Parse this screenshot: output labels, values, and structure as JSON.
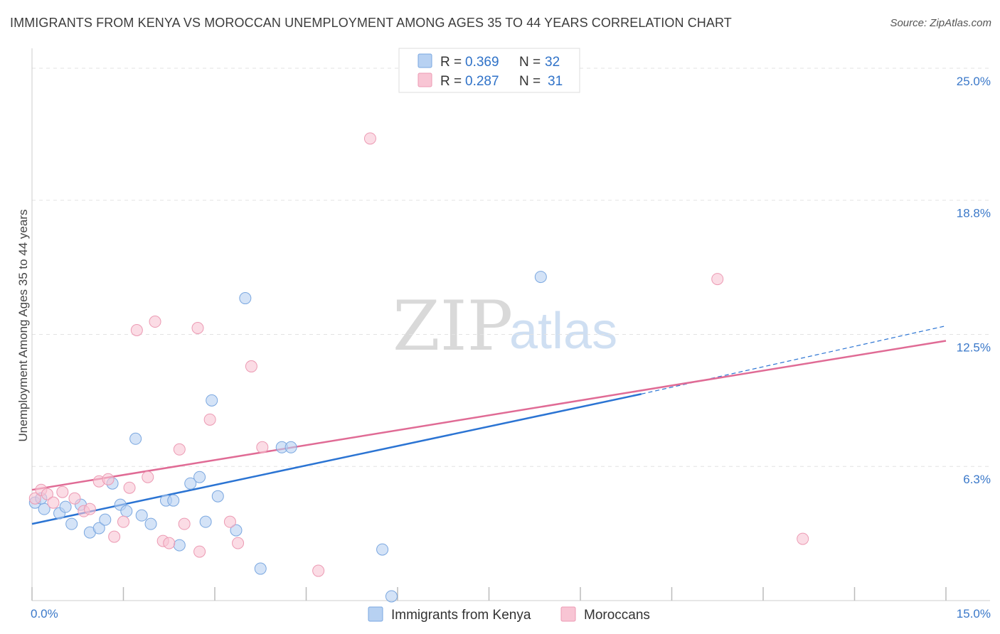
{
  "title": "IMMIGRANTS FROM KENYA VS MOROCCAN UNEMPLOYMENT AMONG AGES 35 TO 44 YEARS CORRELATION CHART",
  "source": "Source: ZipAtlas.com",
  "watermark": {
    "zip": "ZIP",
    "atlas": "atlas"
  },
  "colors": {
    "kenya_fill": "#b7d1f2",
    "kenya_stroke": "#7aa7e0",
    "kenya_line": "#2b74d3",
    "moroccan_fill": "#f8c5d4",
    "moroccan_stroke": "#ec9ab3",
    "moroccan_line": "#e06b95",
    "tick": "#3a78c9",
    "grid": "#e3e3e3"
  },
  "legend": {
    "rows": [
      {
        "r_label": "R = ",
        "r_value": "0.369",
        "n_label": "N = ",
        "n_value": "32"
      },
      {
        "r_label": "R = ",
        "r_value": "0.287",
        "n_label": "N = ",
        "n_value": "31"
      }
    ]
  },
  "bottom_legend": [
    "Immigrants from Kenya",
    "Moroccans"
  ],
  "chart_data": {
    "type": "scatter",
    "title": "IMMIGRANTS FROM KENYA VS MOROCCAN UNEMPLOYMENT AMONG AGES 35 TO 44 YEARS CORRELATION CHART",
    "xlabel": "",
    "ylabel": "Unemployment Among Ages 35 to 44 years",
    "xlim": [
      0,
      15
    ],
    "ylim": [
      0,
      25.6
    ],
    "x_tick_labels": [
      {
        "value": 0,
        "label": "0.0%"
      },
      {
        "value": 15,
        "label": "15.0%"
      }
    ],
    "y_tick_labels": [
      {
        "value": 6.3,
        "label": "6.3%"
      },
      {
        "value": 12.5,
        "label": "12.5%"
      },
      {
        "value": 18.8,
        "label": "18.8%"
      },
      {
        "value": 25.0,
        "label": "25.0%"
      }
    ],
    "series": [
      {
        "name": "Immigrants from Kenya",
        "R": 0.369,
        "N": 32,
        "points": [
          [
            0.05,
            4.6
          ],
          [
            0.2,
            4.3
          ],
          [
            0.45,
            4.1
          ],
          [
            0.55,
            4.4
          ],
          [
            0.65,
            3.6
          ],
          [
            0.8,
            4.5
          ],
          [
            0.95,
            3.2
          ],
          [
            1.1,
            3.4
          ],
          [
            1.2,
            3.8
          ],
          [
            1.32,
            5.5
          ],
          [
            1.45,
            4.5
          ],
          [
            1.55,
            4.2
          ],
          [
            1.7,
            7.6
          ],
          [
            1.8,
            4.0
          ],
          [
            1.95,
            3.6
          ],
          [
            2.2,
            4.7
          ],
          [
            2.32,
            4.7
          ],
          [
            2.42,
            2.6
          ],
          [
            2.6,
            5.5
          ],
          [
            2.75,
            5.8
          ],
          [
            2.85,
            3.7
          ],
          [
            3.05,
            4.9
          ],
          [
            3.35,
            3.3
          ],
          [
            3.5,
            14.2
          ],
          [
            2.95,
            9.4
          ],
          [
            3.75,
            1.5
          ],
          [
            4.1,
            7.2
          ],
          [
            4.25,
            7.2
          ],
          [
            5.75,
            2.4
          ],
          [
            5.9,
            0.2
          ],
          [
            8.35,
            15.2
          ],
          [
            0.15,
            4.8
          ]
        ],
        "trend": {
          "x": [
            0,
            10.0
          ],
          "y": [
            3.6,
            9.7
          ],
          "dashed_extension": {
            "x": [
              10.0,
              15.0
            ],
            "y": [
              9.7,
              12.9
            ]
          }
        }
      },
      {
        "name": "Moroccans",
        "R": 0.287,
        "N": 31,
        "points": [
          [
            0.05,
            4.8
          ],
          [
            0.15,
            5.2
          ],
          [
            0.25,
            5.0
          ],
          [
            0.35,
            4.6
          ],
          [
            0.5,
            5.1
          ],
          [
            0.7,
            4.8
          ],
          [
            0.85,
            4.2
          ],
          [
            0.95,
            4.3
          ],
          [
            1.1,
            5.6
          ],
          [
            1.25,
            5.7
          ],
          [
            1.35,
            3.0
          ],
          [
            1.5,
            3.7
          ],
          [
            1.6,
            5.3
          ],
          [
            1.72,
            12.7
          ],
          [
            1.9,
            5.8
          ],
          [
            2.02,
            13.1
          ],
          [
            2.15,
            2.8
          ],
          [
            2.25,
            2.7
          ],
          [
            2.42,
            7.1
          ],
          [
            2.5,
            3.6
          ],
          [
            2.72,
            12.8
          ],
          [
            2.75,
            2.3
          ],
          [
            2.92,
            8.5
          ],
          [
            3.25,
            3.7
          ],
          [
            3.38,
            2.7
          ],
          [
            3.6,
            11.0
          ],
          [
            3.78,
            7.2
          ],
          [
            4.7,
            1.4
          ],
          [
            5.55,
            21.7
          ],
          [
            11.25,
            15.1
          ],
          [
            12.65,
            2.9
          ]
        ],
        "trend": {
          "x": [
            0,
            15.0
          ],
          "y": [
            5.2,
            12.2
          ]
        }
      }
    ],
    "grid": true,
    "legend_position": "top-center"
  }
}
